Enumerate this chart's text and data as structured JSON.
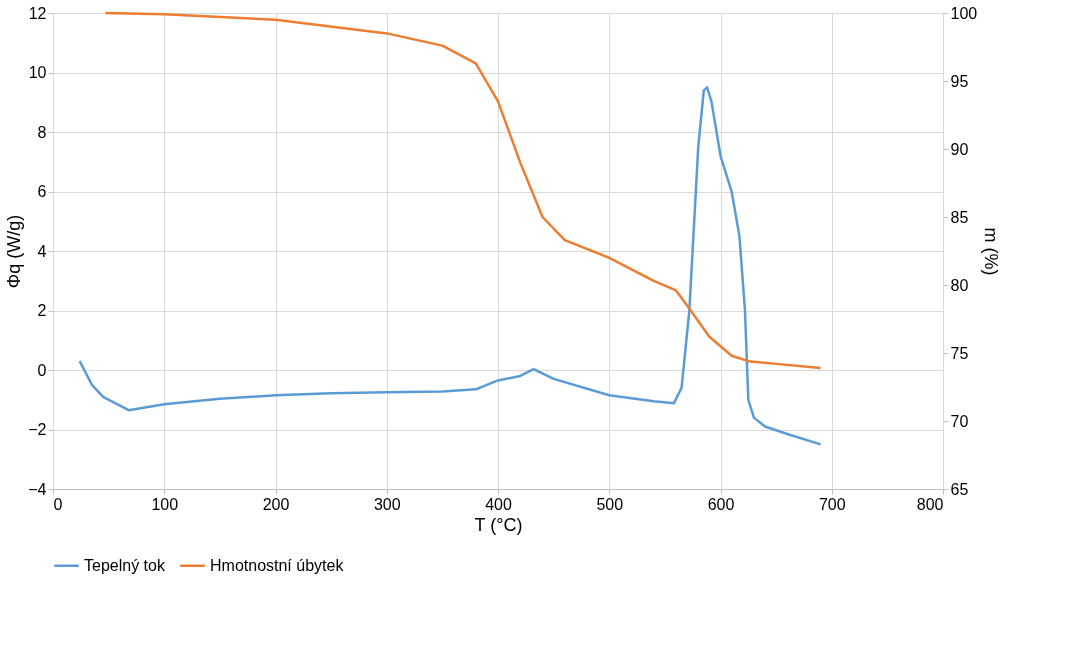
{
  "chart_data": {
    "type": "line",
    "xlabel": "T (°C)",
    "ylabel": "Φq (W/g)",
    "y2label": "m (%)",
    "xlim": [
      0,
      800
    ],
    "xticks": [
      0,
      100,
      200,
      300,
      400,
      500,
      600,
      700,
      800
    ],
    "ylim": [
      -4,
      12
    ],
    "yticks": [
      -4,
      -2,
      0,
      2,
      4,
      6,
      8,
      10,
      12
    ],
    "y2lim": [
      65,
      100
    ],
    "y2ticks": [
      65,
      70,
      75,
      80,
      85,
      90,
      95,
      100
    ],
    "grid": true,
    "legend": "bottom",
    "marker": "none",
    "line_style": "solid",
    "series": [
      {
        "name": "Tepelný tok",
        "color": "#5b9bd5",
        "x": [
          24,
          35,
          45,
          68,
          100,
          150,
          200,
          250,
          300,
          350,
          380,
          400,
          420,
          432,
          450,
          500,
          540,
          558,
          565,
          572,
          580,
          585,
          588,
          592,
          600,
          610,
          617,
          622,
          625,
          630,
          640,
          660,
          690
        ],
        "values": [
          0.3,
          -0.5,
          -0.9,
          -1.35,
          -1.15,
          -0.97,
          -0.85,
          -0.78,
          -0.75,
          -0.72,
          -0.65,
          -0.35,
          -0.2,
          0.03,
          -0.3,
          -0.85,
          -1.05,
          -1.12,
          -0.6,
          2,
          7.5,
          9.4,
          9.5,
          9,
          7.2,
          6,
          4.5,
          2,
          -1,
          -1.6,
          -1.9,
          -2.15,
          -2.5
        ]
      },
      {
        "name": "Hmotnostní úbytek",
        "color": "#ed7d31",
        "axis": "y2",
        "x": [
          47,
          100,
          200,
          300,
          350,
          380,
          400,
          420,
          440,
          460,
          500,
          540,
          560,
          570,
          590,
          610,
          625,
          650,
          690
        ],
        "values": [
          100,
          99.9,
          99.5,
          98.5,
          97.6,
          96.3,
          93.5,
          89,
          85,
          83.3,
          82,
          80.3,
          79.6,
          78.5,
          76.2,
          74.8,
          74.4,
          74.2,
          73.9
        ]
      }
    ]
  }
}
